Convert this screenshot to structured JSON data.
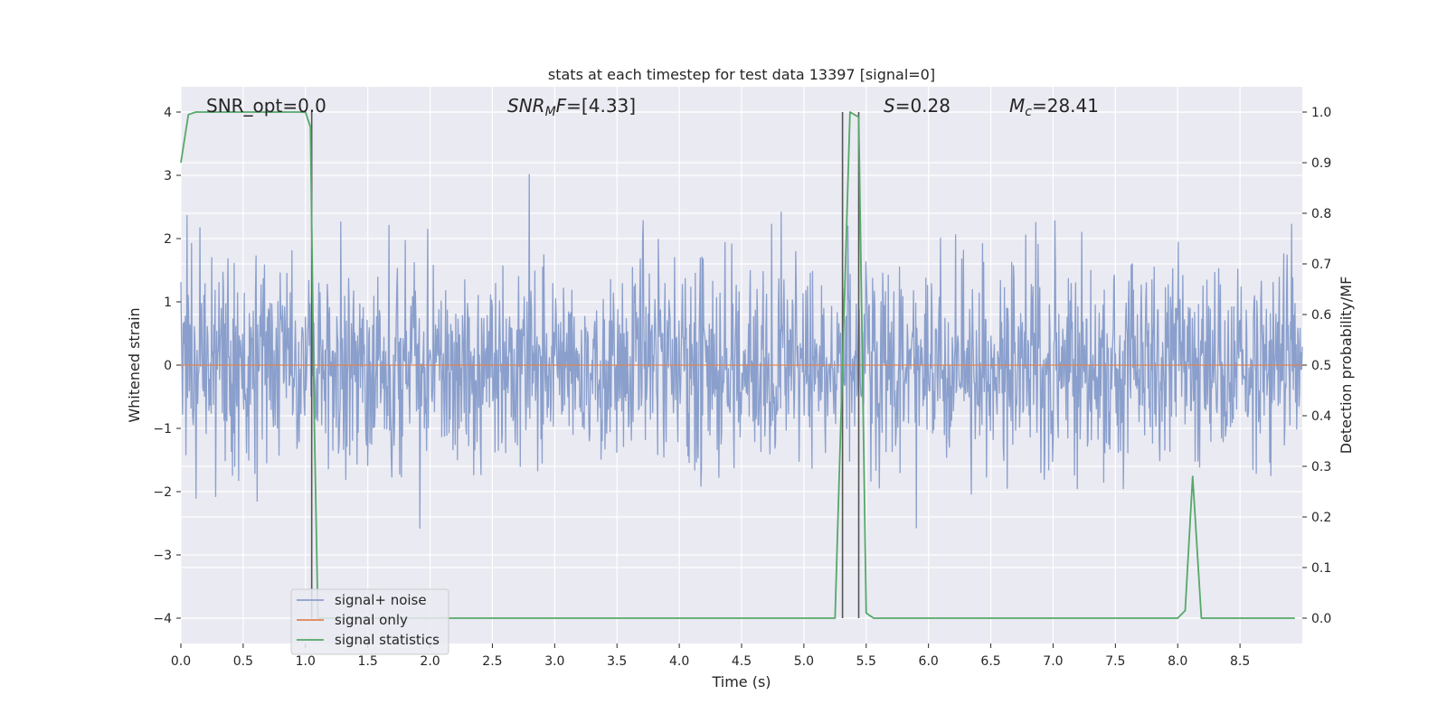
{
  "chart_data": {
    "type": "line",
    "title": "stats at each timestep for test data 13397 [signal=0]",
    "xlabel": "Time (s)",
    "ylabel": "Whitened strain",
    "ylabel_right": "Detection probability/MF",
    "xlim": [
      0,
      9.0
    ],
    "ylim": [
      -4.4,
      4.4
    ],
    "ylim_right": [
      -0.05,
      1.05
    ],
    "x_ticks": [
      0.0,
      0.5,
      1.0,
      1.5,
      2.0,
      2.5,
      3.0,
      3.5,
      4.0,
      4.5,
      5.0,
      5.5,
      6.0,
      6.5,
      7.0,
      7.5,
      8.0,
      8.5
    ],
    "x_tick_labels": [
      "0.0",
      "0.5",
      "1.0",
      "1.5",
      "2.0",
      "2.5",
      "3.0",
      "3.5",
      "4.0",
      "4.5",
      "5.0",
      "5.5",
      "6.0",
      "6.5",
      "7.0",
      "7.5",
      "8.0",
      "8.5"
    ],
    "y_ticks": [
      -4,
      -3,
      -2,
      -1,
      0,
      1,
      2,
      3,
      4
    ],
    "y_tick_labels": [
      "−4",
      "−3",
      "−2",
      "−1",
      "0",
      "1",
      "2",
      "3",
      "4"
    ],
    "y_ticks_right": [
      0.0,
      0.1,
      0.2,
      0.3,
      0.4,
      0.5,
      0.6,
      0.7,
      0.8,
      0.9,
      1.0
    ],
    "y_tick_labels_right": [
      "0.0",
      "0.1",
      "0.2",
      "0.3",
      "0.4",
      "0.5",
      "0.6",
      "0.7",
      "0.8",
      "0.9",
      "1.0"
    ],
    "grid": true,
    "legend_position": "lower-left",
    "annotations": {
      "snr_opt": "SNR_opt=0.0",
      "snr_mf_main": "SNR",
      "snr_mf_sub": "M",
      "snr_mf_tail": "F",
      "snr_mf_value": "=[4.33]",
      "s_symbol": "S",
      "s_value": "=0.28",
      "mc_symbol": "M",
      "mc_sub": "c",
      "mc_value": "=28.41"
    },
    "vertical_lines": [
      1.05,
      5.31,
      5.44
    ],
    "series": [
      {
        "name": "signal+ noise",
        "color": "#8a9fcc",
        "axis": "left",
        "noise_std": 0.8,
        "duration": 9.0,
        "samples": 2000,
        "seed": 13397
      },
      {
        "name": "signal only",
        "color": "#dd8452",
        "axis": "left",
        "x": [
          0.0,
          9.0
        ],
        "y": [
          0.0,
          0.0
        ]
      },
      {
        "name": "signal statistics",
        "color": "#55a868",
        "axis": "right",
        "x": [
          0.0,
          0.06,
          0.12,
          0.25,
          0.5,
          0.75,
          0.95,
          1.0,
          1.04,
          1.07,
          1.1,
          1.2,
          2.0,
          3.0,
          4.0,
          5.0,
          5.25,
          5.31,
          5.37,
          5.44,
          5.5,
          5.56,
          6.0,
          7.0,
          7.5,
          8.0,
          8.06,
          8.12,
          8.19,
          8.25,
          8.94
        ],
        "y": [
          0.9,
          0.995,
          1.0,
          1.0,
          1.0,
          1.0,
          1.0,
          1.0,
          0.97,
          0.4,
          0.0,
          0.0,
          0.0,
          0.0,
          0.0,
          0.0,
          0.0,
          0.5,
          1.0,
          0.99,
          0.01,
          0.0,
          0.0,
          0.0,
          0.0,
          0.0,
          0.015,
          0.28,
          0.0,
          0.0,
          0.0
        ]
      }
    ]
  }
}
